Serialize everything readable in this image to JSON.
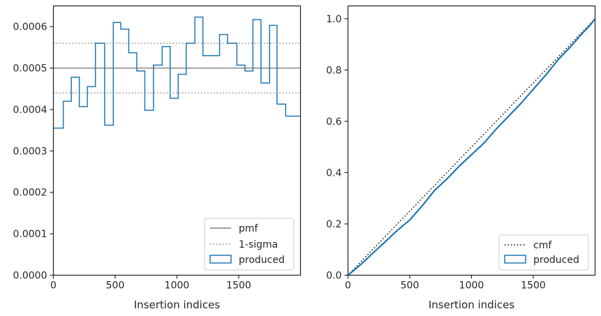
{
  "chart_data": [
    {
      "type": "line",
      "xlabel": "Insertion indices",
      "ylabel": "",
      "xlim": [
        0,
        2000
      ],
      "ylim": [
        0,
        0.00065
      ],
      "xticks": [
        0,
        500,
        1000,
        1500
      ],
      "xtick_labels": [
        "0",
        "500",
        "1000",
        "1500"
      ],
      "yticks": [
        0,
        0.0001,
        0.0002,
        0.0003,
        0.0004,
        0.0005,
        0.0006
      ],
      "ytick_labels": [
        "0.0000",
        "0.0001",
        "0.0002",
        "0.0003",
        "0.0004",
        "0.0005",
        "0.0006"
      ],
      "legend_position": "lower-right",
      "grid": false,
      "reference_lines": [
        {
          "name": "pmf",
          "value": 0.0005,
          "color": "#808080",
          "style": "solid"
        },
        {
          "name": "1-sigma",
          "values": [
            0.00056,
            0.00044
          ],
          "color": "#808080",
          "style": "dotted"
        }
      ],
      "series": [
        {
          "name": "produced",
          "color": "#1f77b4",
          "style": "step",
          "bin_edges": [
            0,
            80,
            145,
            210,
            275,
            340,
            415,
            485,
            545,
            610,
            675,
            740,
            810,
            880,
            945,
            1010,
            1075,
            1145,
            1210,
            1275,
            1345,
            1410,
            1485,
            1550,
            1615,
            1680,
            1750,
            1810,
            1880,
            1945,
            2000
          ],
          "values": [
            0.000355,
            0.00042,
            0.000478,
            0.000407,
            0.000455,
            0.00056,
            0.000362,
            0.00061,
            0.000594,
            0.000537,
            0.000493,
            0.000398,
            0.000507,
            0.000552,
            0.000427,
            0.000485,
            0.00056,
            0.000623,
            0.00053,
            0.00053,
            0.000581,
            0.00056,
            0.000507,
            0.000493,
            0.000617,
            0.000464,
            0.000603,
            0.000413,
            0.000384,
            0.000384
          ]
        }
      ]
    },
    {
      "type": "line",
      "xlabel": "Insertion indices",
      "ylabel": "",
      "xlim": [
        0,
        2000
      ],
      "ylim": [
        0,
        1.05
      ],
      "xticks": [
        0,
        500,
        1000,
        1500
      ],
      "xtick_labels": [
        "0",
        "500",
        "1000",
        "1500"
      ],
      "yticks": [
        0,
        0.2,
        0.4,
        0.6,
        0.8,
        1.0
      ],
      "ytick_labels": [
        "0.0",
        "0.2",
        "0.4",
        "0.6",
        "0.8",
        "1.0"
      ],
      "legend_position": "lower-right",
      "grid": false,
      "series": [
        {
          "name": "cmf",
          "color": "#000000",
          "style": "dotted",
          "x": [
            0,
            2000
          ],
          "y": [
            0,
            1.0
          ]
        },
        {
          "name": "produced",
          "color": "#1f77b4",
          "style": "solid",
          "x": [
            0,
            100,
            200,
            300,
            400,
            500,
            600,
            700,
            800,
            900,
            1000,
            1100,
            1200,
            1300,
            1400,
            1500,
            1600,
            1700,
            1800,
            1900,
            1960,
            2000
          ],
          "y": [
            0,
            0.04,
            0.085,
            0.13,
            0.175,
            0.215,
            0.27,
            0.33,
            0.375,
            0.425,
            0.47,
            0.515,
            0.57,
            0.62,
            0.67,
            0.725,
            0.78,
            0.84,
            0.89,
            0.945,
            0.975,
            1.0
          ]
        }
      ]
    }
  ]
}
